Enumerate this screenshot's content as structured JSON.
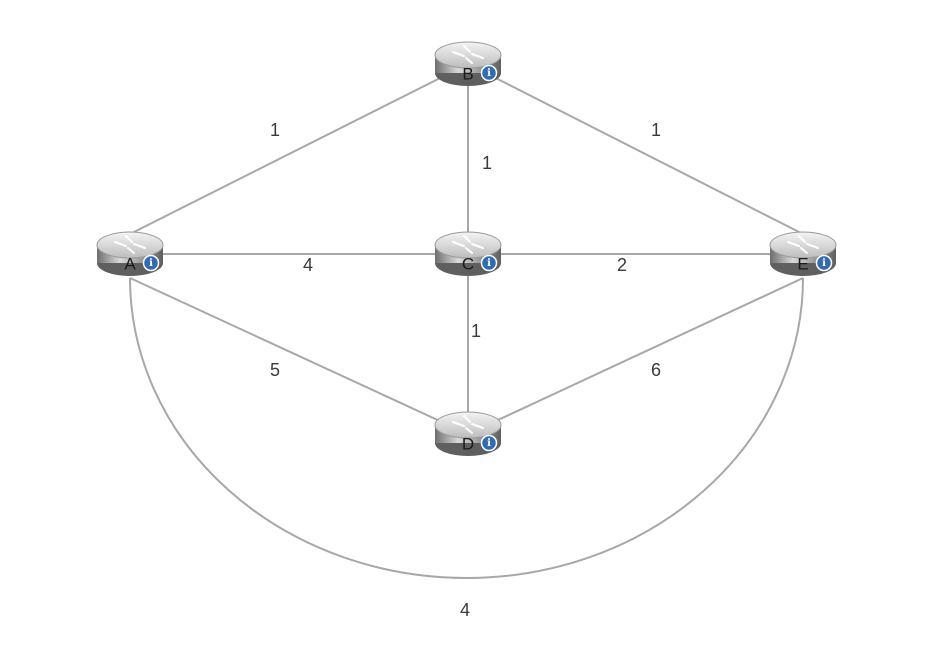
{
  "routers": [
    {
      "id": "A",
      "label": "A",
      "icon": "router-icon",
      "badge_icon": "info-icon"
    },
    {
      "id": "B",
      "label": "B",
      "icon": "router-icon",
      "badge_icon": "info-icon"
    },
    {
      "id": "C",
      "label": "C",
      "icon": "router-icon",
      "badge_icon": "info-icon"
    },
    {
      "id": "D",
      "label": "D",
      "icon": "router-icon",
      "badge_icon": "info-icon"
    },
    {
      "id": "E",
      "label": "E",
      "icon": "router-icon",
      "badge_icon": "info-icon"
    }
  ],
  "links": [
    {
      "from": "A",
      "to": "B",
      "cost": "1"
    },
    {
      "from": "B",
      "to": "E",
      "cost": "1"
    },
    {
      "from": "B",
      "to": "C",
      "cost": "1"
    },
    {
      "from": "A",
      "to": "C",
      "cost": "4"
    },
    {
      "from": "C",
      "to": "E",
      "cost": "2"
    },
    {
      "from": "C",
      "to": "D",
      "cost": "1"
    },
    {
      "from": "A",
      "to": "D",
      "cost": "5"
    },
    {
      "from": "D",
      "to": "E",
      "cost": "6"
    },
    {
      "from": "A",
      "to": "E",
      "cost": "4"
    }
  ],
  "colors": {
    "link": "#a8a8a8",
    "router_body": "#8c8c8c",
    "info_badge": "#2f6db3"
  }
}
